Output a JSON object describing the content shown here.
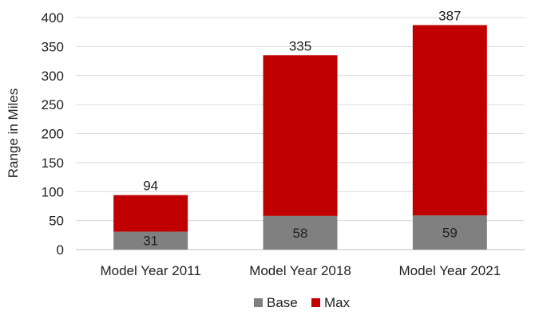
{
  "chart_data": {
    "type": "bar",
    "stacked": true,
    "title": "",
    "xlabel": "",
    "ylabel": "Range in Miles",
    "ylim": [
      0,
      400
    ],
    "yticks": [
      0,
      50,
      100,
      150,
      200,
      250,
      300,
      350,
      400
    ],
    "grid": true,
    "legend_position": "bottom",
    "categories": [
      "Model Year 2011",
      "Model Year 2018",
      "Model Year 2021"
    ],
    "series": [
      {
        "name": "Base",
        "color": "#808080",
        "values": [
          31,
          58,
          59
        ],
        "labels": [
          "31",
          "58",
          "59"
        ]
      },
      {
        "name": "Max",
        "color": "#c00000",
        "values": [
          63,
          277,
          328
        ],
        "labels": [
          "94",
          "335",
          "387"
        ]
      }
    ]
  }
}
